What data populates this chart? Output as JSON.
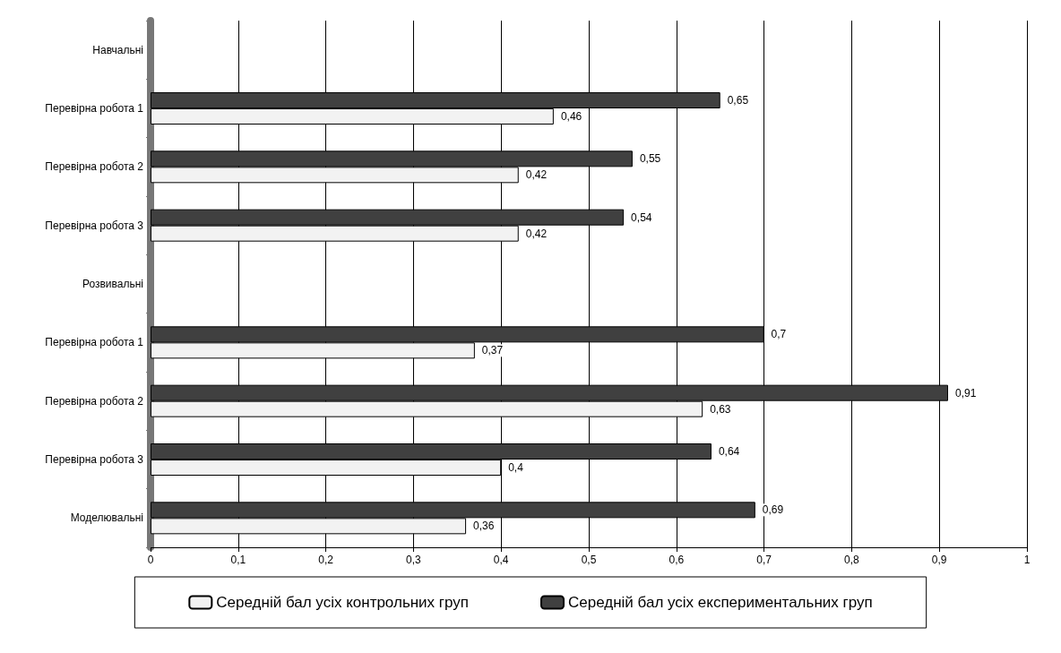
{
  "chart_data": {
    "type": "bar",
    "orientation": "horizontal",
    "categories": [
      "Навчальні",
      "Перевірна робота 1",
      "Перевірна робота 2",
      "Перевірна робота 3",
      "Розвивальні",
      "Перевірна робота 1",
      "Перевірна робота 2",
      "Перевірна робота 3",
      "Моделювальні"
    ],
    "series": [
      {
        "name": "Середній бал усіх контрольних груп",
        "color": "#f2f2f2",
        "values": [
          null,
          0.46,
          0.42,
          0.42,
          null,
          0.37,
          0.63,
          0.4,
          0.36
        ],
        "value_labels": [
          null,
          "0,46",
          "0,42",
          "0,42",
          null,
          "0,37",
          "0,63",
          "0,4",
          "0,36"
        ]
      },
      {
        "name": "Середній бал усіх експериментальних груп",
        "color": "#404040",
        "values": [
          null,
          0.65,
          0.55,
          0.54,
          null,
          0.7,
          0.91,
          0.64,
          0.69
        ],
        "value_labels": [
          null,
          "0,65",
          "0,55",
          "0,54",
          null,
          "0,7",
          "0,91",
          "0,64",
          "0,69"
        ]
      }
    ],
    "xlim": [
      0,
      1
    ],
    "xticks": [
      0,
      {
        "value": 0.1,
        "label": "0,1"
      },
      {
        "value": 0.2,
        "label": "0,2"
      },
      {
        "value": 0.3,
        "label": "0,3"
      },
      {
        "value": 0.4,
        "label": "0,4"
      },
      {
        "value": 0.5,
        "label": "0,5"
      },
      {
        "value": 0.6,
        "label": "0,6"
      },
      {
        "value": 0.7,
        "label": "0,7"
      },
      {
        "value": 0.8,
        "label": "0,8"
      },
      {
        "value": 0.9,
        "label": "0,9"
      },
      1
    ],
    "grid": "x",
    "legend": "bottom"
  }
}
